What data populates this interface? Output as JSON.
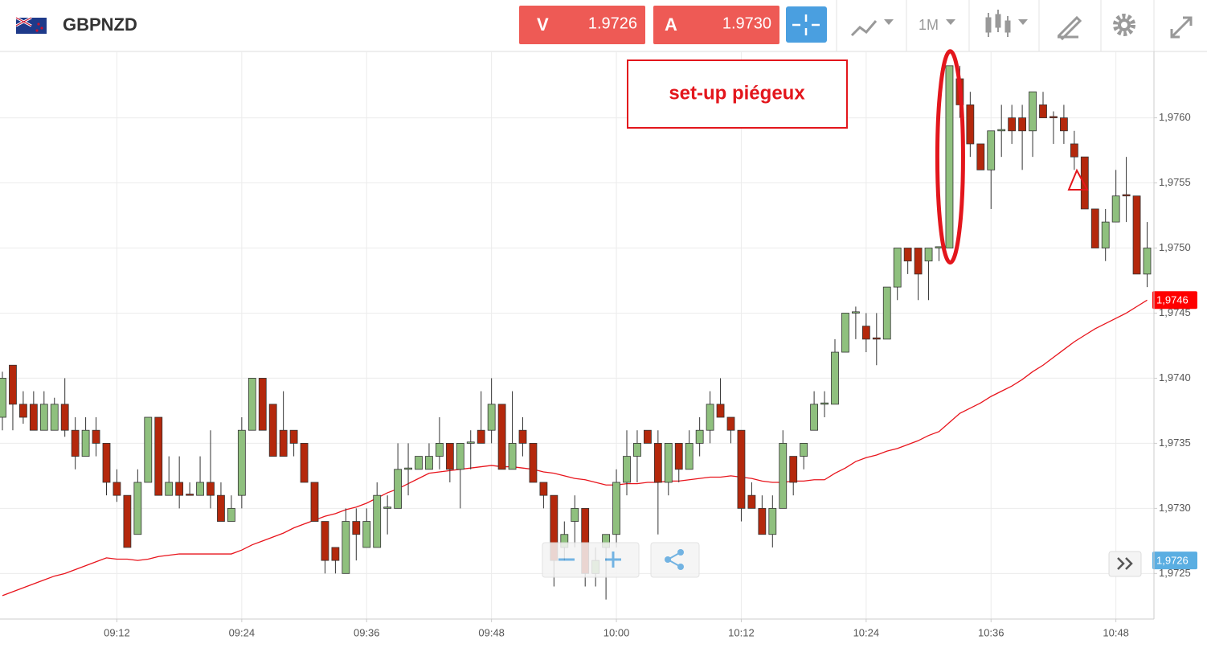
{
  "header": {
    "symbol": "GBPNZD",
    "sell": {
      "label": "V",
      "price": "1.9726"
    },
    "buy": {
      "label": "A",
      "price": "1.9730"
    },
    "timeframe": "1M"
  },
  "chart_data": {
    "type": "candlestick",
    "annotation": "set-up piégeux",
    "x": [
      "09:01",
      "09:02",
      "09:03",
      "09:04",
      "09:05",
      "09:06",
      "09:07",
      "09:08",
      "09:09",
      "09:10",
      "09:11",
      "09:12",
      "09:13",
      "09:14",
      "09:15",
      "09:16",
      "09:17",
      "09:18",
      "09:19",
      "09:20",
      "09:21",
      "09:22",
      "09:23",
      "09:24",
      "09:25",
      "09:26",
      "09:27",
      "09:28",
      "09:29",
      "09:30",
      "09:31",
      "09:32",
      "09:33",
      "09:34",
      "09:35",
      "09:36",
      "09:37",
      "09:38",
      "09:39",
      "09:40",
      "09:41",
      "09:42",
      "09:43",
      "09:44",
      "09:45",
      "09:46",
      "09:47",
      "09:48",
      "09:49",
      "09:50",
      "09:51",
      "09:52",
      "09:53",
      "09:54",
      "09:55",
      "09:56",
      "09:57",
      "09:58",
      "09:59",
      "10:00",
      "10:01",
      "10:02",
      "10:03",
      "10:04",
      "10:05",
      "10:06",
      "10:07",
      "10:08",
      "10:09",
      "10:10",
      "10:11",
      "10:12",
      "10:13",
      "10:14",
      "10:15",
      "10:16",
      "10:17",
      "10:18",
      "10:19",
      "10:20",
      "10:21",
      "10:22",
      "10:23",
      "10:24",
      "10:25",
      "10:26",
      "10:27",
      "10:28",
      "10:29",
      "10:30",
      "10:31",
      "10:32",
      "10:33",
      "10:34",
      "10:35",
      "10:36",
      "10:37",
      "10:38",
      "10:39",
      "10:40",
      "10:41",
      "10:42",
      "10:43",
      "10:44",
      "10:45",
      "10:46",
      "10:47",
      "10:48",
      "10:49",
      "10:50",
      "10:51"
    ],
    "open": [
      1.9737,
      1.9741,
      1.9738,
      1.9738,
      1.9736,
      1.9736,
      1.9738,
      1.9736,
      1.9734,
      1.9736,
      1.9735,
      1.9732,
      1.9731,
      1.9728,
      1.9732,
      1.9737,
      1.9731,
      1.9732,
      1.97311,
      1.9731,
      1.9732,
      1.9731,
      1.9729,
      1.9731,
      1.9736,
      1.974,
      1.9738,
      1.9736,
      1.9736,
      1.9735,
      1.9732,
      1.9729,
      1.9727,
      1.9725,
      1.9729,
      1.9727,
      1.9727,
      1.973,
      1.973,
      1.9733,
      1.9733,
      1.9733,
      1.9734,
      1.9735,
      1.9733,
      1.9735,
      1.9736,
      1.9736,
      1.9738,
      1.9733,
      1.9736,
      1.9735,
      1.9732,
      1.9731,
      1.9727,
      1.9729,
      1.973,
      1.9725,
      1.9727,
      1.9728,
      1.9732,
      1.9734,
      1.9736,
      1.9735,
      1.9732,
      1.9735,
      1.9733,
      1.9735,
      1.9736,
      1.9738,
      1.9737,
      1.9736,
      1.9731,
      1.973,
      1.9728,
      1.973,
      1.9734,
      1.9734,
      1.9736,
      1.9738,
      1.9738,
      1.9742,
      1.9745,
      1.9744,
      1.97431,
      1.9743,
      1.9747,
      1.975,
      1.975,
      1.9749,
      1.975,
      1.975,
      1.9763,
      1.9761,
      1.9758,
      1.9756,
      1.9759,
      1.976,
      1.976,
      1.9759,
      1.9761,
      1.97601,
      1.976,
      1.9758,
      1.9757,
      1.9753,
      1.975,
      1.9752,
      1.97541,
      1.9754,
      1.9748
    ],
    "high": [
      1.97405,
      1.9741,
      1.9739,
      1.9739,
      1.9739,
      1.97385,
      1.974,
      1.9737,
      1.9737,
      1.9737,
      1.9735,
      1.9733,
      1.9731,
      1.9733,
      1.9737,
      1.9737,
      1.9734,
      1.9734,
      1.9732,
      1.9734,
      1.9736,
      1.9732,
      1.9731,
      1.9737,
      1.974,
      1.974,
      1.9738,
      1.9739,
      1.9736,
      1.9735,
      1.9732,
      1.9729,
      1.9727,
      1.973,
      1.973,
      1.973,
      1.9732,
      1.9731,
      1.9735,
      1.9735,
      1.9734,
      1.9735,
      1.9737,
      1.9735,
      1.9735,
      1.9736,
      1.9739,
      1.974,
      1.9738,
      1.9739,
      1.9737,
      1.9735,
      1.9732,
      1.9731,
      1.9729,
      1.9731,
      1.973,
      1.9727,
      1.9728,
      1.9733,
      1.9736,
      1.9736,
      1.9736,
      1.9736,
      1.9735,
      1.9735,
      1.9736,
      1.9737,
      1.9739,
      1.974,
      1.9737,
      1.9736,
      1.9732,
      1.9731,
      1.9731,
      1.9736,
      1.9734,
      1.9735,
      1.9739,
      1.9739,
      1.9743,
      1.9745,
      1.97455,
      1.9745,
      1.9745,
      1.9747,
      1.975,
      1.975,
      1.975,
      1.975,
      1.97501,
      1.9764,
      1.9764,
      1.9762,
      1.9758,
      1.9759,
      1.9761,
      1.9761,
      1.9761,
      1.9762,
      1.9762,
      1.97605,
      1.9761,
      1.9759,
      1.9757,
      1.9753,
      1.9753,
      1.9756,
      1.9757,
      1.9754,
      1.9752
    ],
    "low": [
      1.9736,
      1.9736,
      1.97365,
      1.9736,
      1.9736,
      1.9736,
      1.97355,
      1.9733,
      1.9734,
      1.9734,
      1.9731,
      1.97305,
      1.9727,
      1.9728,
      1.9732,
      1.9731,
      1.9731,
      1.973,
      1.9731,
      1.9731,
      1.973,
      1.9729,
      1.9729,
      1.973,
      1.9736,
      1.9736,
      1.9734,
      1.9734,
      1.9734,
      1.9732,
      1.9729,
      1.9725,
      1.9725,
      1.9725,
      1.9726,
      1.9727,
      1.9727,
      1.9728,
      1.973,
      1.9731,
      1.9733,
      1.9733,
      1.9733,
      1.9732,
      1.973,
      1.9733,
      1.9735,
      1.9735,
      1.9733,
      1.9733,
      1.9734,
      1.9732,
      1.973,
      1.9724,
      1.9726,
      1.9727,
      1.9724,
      1.9724,
      1.9723,
      1.9727,
      1.9731,
      1.9732,
      1.9735,
      1.9728,
      1.9731,
      1.9732,
      1.9733,
      1.9734,
      1.9735,
      1.9737,
      1.9735,
      1.9729,
      1.973,
      1.9728,
      1.9727,
      1.973,
      1.9731,
      1.9733,
      1.9736,
      1.9737,
      1.9738,
      1.9742,
      1.9743,
      1.9742,
      1.9741,
      1.9743,
      1.9746,
      1.9748,
      1.9746,
      1.9746,
      1.9749,
      1.975,
      1.976,
      1.9757,
      1.9756,
      1.9753,
      1.9757,
      1.9758,
      1.9756,
      1.9757,
      1.976,
      1.9758,
      1.9758,
      1.9756,
      1.9753,
      1.975,
      1.9749,
      1.9752,
      1.9752,
      1.9748,
      1.9747
    ],
    "close": [
      1.974,
      1.9738,
      1.9737,
      1.9736,
      1.9738,
      1.9738,
      1.9736,
      1.9734,
      1.9736,
      1.9735,
      1.9732,
      1.9731,
      1.9727,
      1.9732,
      1.9737,
      1.9731,
      1.9732,
      1.9731,
      1.9731,
      1.9732,
      1.9731,
      1.9729,
      1.973,
      1.9736,
      1.974,
      1.9736,
      1.9734,
      1.9734,
      1.9735,
      1.9732,
      1.9729,
      1.9726,
      1.9726,
      1.9729,
      1.9728,
      1.9729,
      1.9731,
      1.97301,
      1.9733,
      1.97331,
      1.9734,
      1.9734,
      1.9735,
      1.9733,
      1.9735,
      1.97351,
      1.9735,
      1.9738,
      1.9733,
      1.9735,
      1.9735,
      1.9732,
      1.9731,
      1.9726,
      1.9728,
      1.973,
      1.9725,
      1.9726,
      1.9728,
      1.9732,
      1.9734,
      1.9735,
      1.9735,
      1.9732,
      1.9735,
      1.9733,
      1.9735,
      1.9736,
      1.9738,
      1.9737,
      1.9736,
      1.973,
      1.973,
      1.9728,
      1.973,
      1.9735,
      1.9732,
      1.9735,
      1.9738,
      1.97381,
      1.9742,
      1.9745,
      1.97451,
      1.9743,
      1.9743,
      1.9747,
      1.975,
      1.9749,
      1.9748,
      1.975,
      1.97501,
      1.9764,
      1.9761,
      1.9758,
      1.9756,
      1.9759,
      1.97591,
      1.9759,
      1.9759,
      1.9762,
      1.976,
      1.976,
      1.9759,
      1.9757,
      1.9753,
      1.975,
      1.9752,
      1.9754,
      1.9754,
      1.9748,
      1.975
    ],
    "up_color": "#8fc07e",
    "down_color": "#b4280c",
    "ma": {
      "color": "#e8141c",
      "values": [
        1.97233,
        1.97236,
        1.97239,
        1.97242,
        1.97245,
        1.97248,
        1.9725,
        1.97253,
        1.97256,
        1.97259,
        1.97262,
        1.97261,
        1.97261,
        1.9726,
        1.97261,
        1.97263,
        1.97264,
        1.97265,
        1.97265,
        1.97265,
        1.97265,
        1.97265,
        1.97265,
        1.97268,
        1.97272,
        1.97275,
        1.97278,
        1.97281,
        1.97285,
        1.97288,
        1.97291,
        1.97294,
        1.97296,
        1.97299,
        1.97301,
        1.97304,
        1.97308,
        1.97312,
        1.97315,
        1.97319,
        1.97323,
        1.97327,
        1.97328,
        1.97329,
        1.9733,
        1.97331,
        1.97332,
        1.97333,
        1.97332,
        1.97332,
        1.97331,
        1.9733,
        1.97328,
        1.97327,
        1.97325,
        1.97323,
        1.97322,
        1.9732,
        1.97318,
        1.97318,
        1.97319,
        1.97319,
        1.9732,
        1.9732,
        1.97321,
        1.97321,
        1.97322,
        1.97323,
        1.97324,
        1.97324,
        1.97325,
        1.97324,
        1.97323,
        1.97321,
        1.9732,
        1.9732,
        1.97321,
        1.97321,
        1.97322,
        1.97322,
        1.97327,
        1.97331,
        1.97336,
        1.97339,
        1.97341,
        1.97344,
        1.97346,
        1.97349,
        1.97352,
        1.97356,
        1.97359,
        1.97366,
        1.97373,
        1.97377,
        1.97381,
        1.97386,
        1.9739,
        1.97394,
        1.97399,
        1.97405,
        1.9741,
        1.97416,
        1.97422,
        1.97428,
        1.97433,
        1.97438,
        1.97442,
        1.97446,
        1.9745,
        1.97455,
        1.9746
      ]
    },
    "ylim": [
      1.97215,
      1.97651
    ],
    "yticks": [
      {
        "value": 1.9725,
        "label": "1,9725"
      },
      {
        "value": 1.973,
        "label": "1,9730"
      },
      {
        "value": 1.9735,
        "label": "1,9735"
      },
      {
        "value": 1.974,
        "label": "1,9740"
      },
      {
        "value": 1.9745,
        "label": "1,9745"
      },
      {
        "value": 1.975,
        "label": "1,9750"
      },
      {
        "value": 1.9755,
        "label": "1,9755"
      },
      {
        "value": 1.976,
        "label": "1,9760"
      }
    ],
    "price_tags": [
      {
        "value": 1.9746,
        "label": "1,9746",
        "color": "#ff0000"
      },
      {
        "value": 1.9726,
        "label": "1,9726",
        "color": "#5aaee2"
      }
    ],
    "grid": true
  }
}
